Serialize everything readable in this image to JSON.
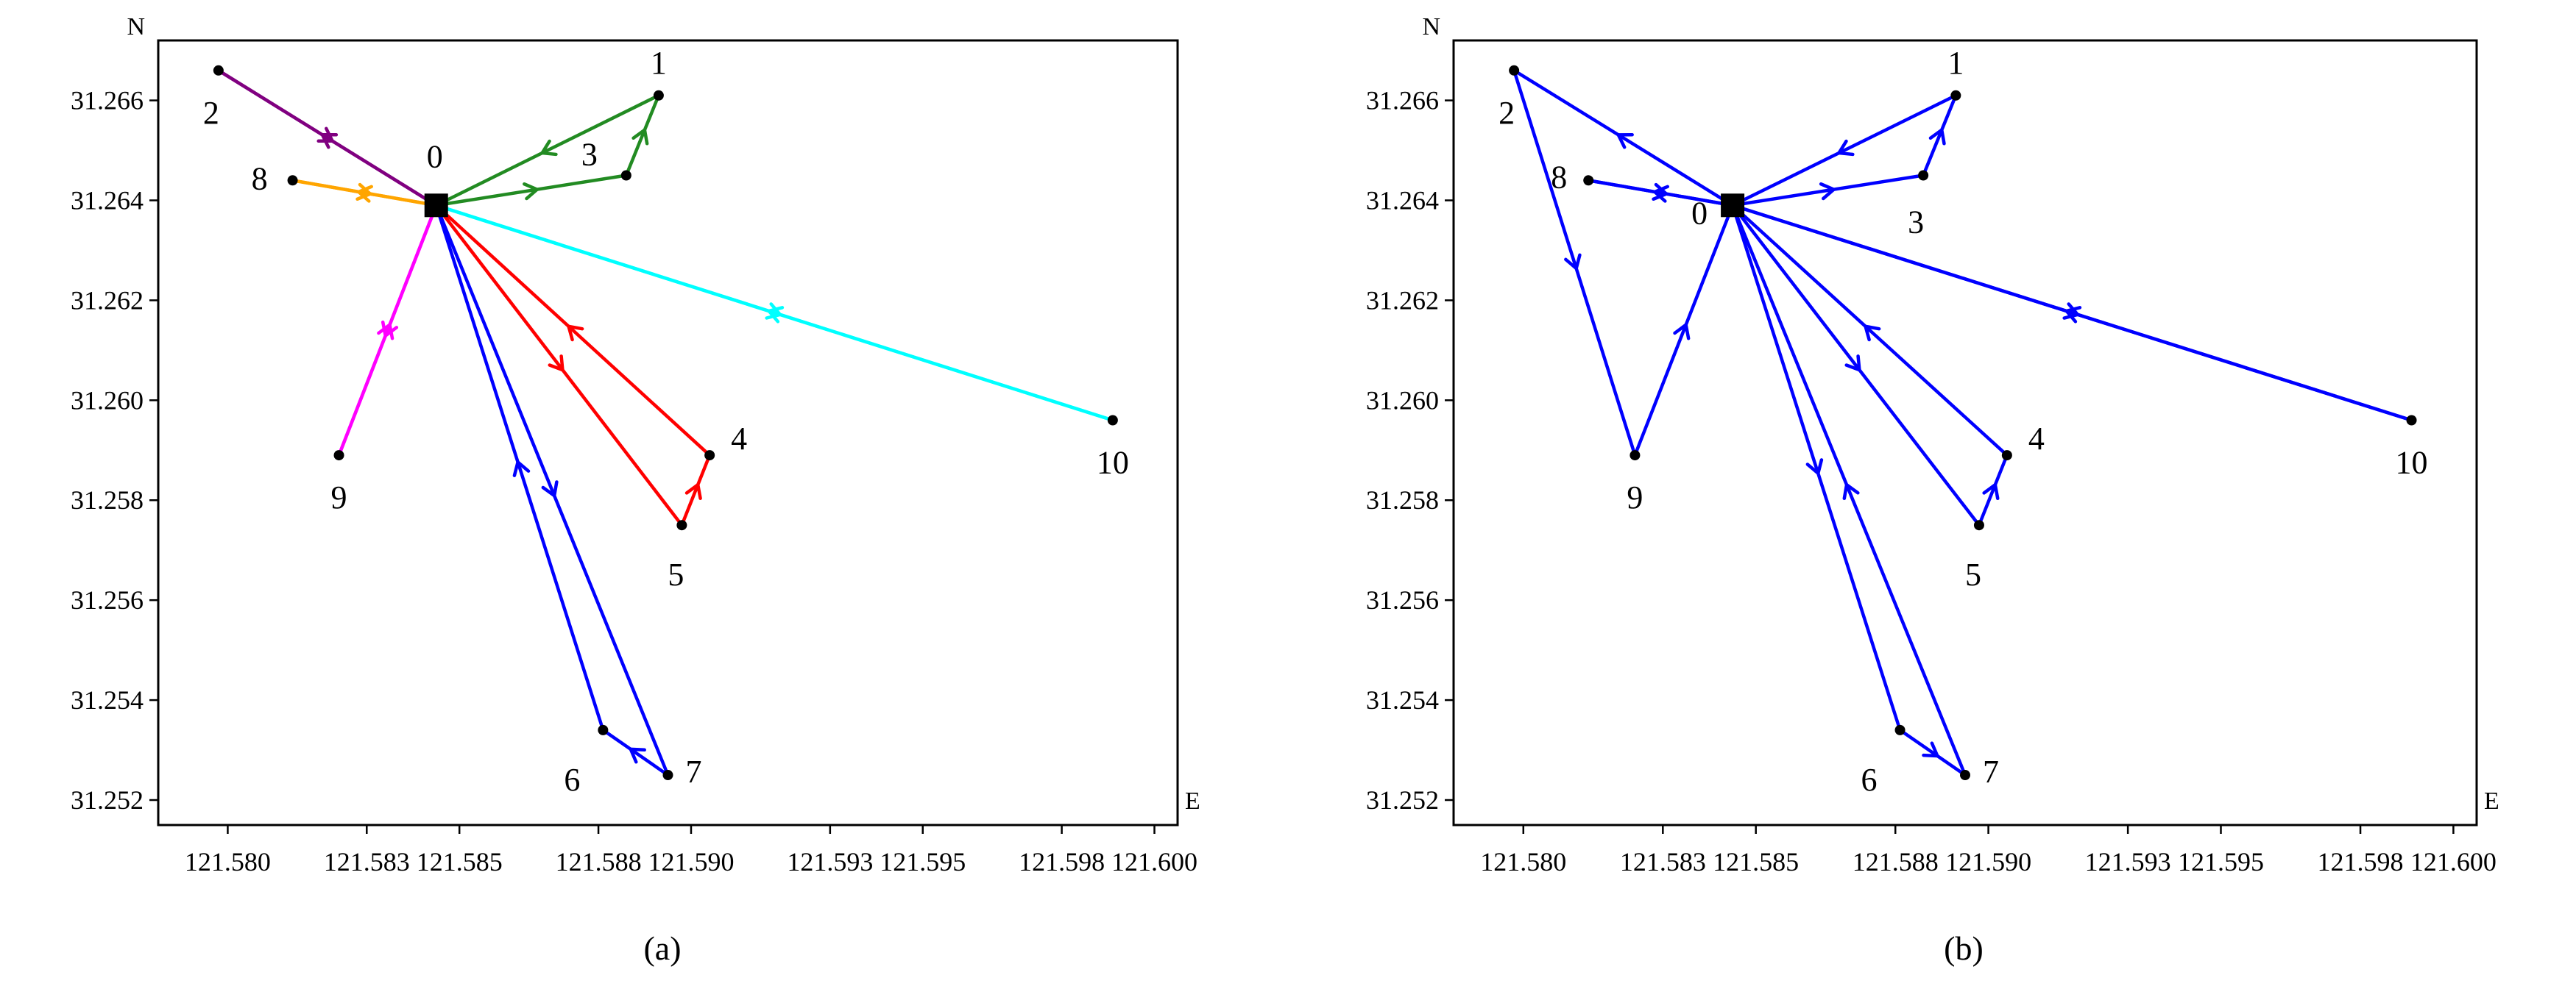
{
  "axis": {
    "x_ticks": [
      "121.580",
      "121.583",
      "121.585",
      "121.588",
      "121.590",
      "121.593",
      "121.595",
      "121.598",
      "121.600"
    ],
    "y_ticks": [
      "31.252",
      "31.254",
      "31.256",
      "31.258",
      "31.260",
      "31.262",
      "31.264",
      "31.266"
    ],
    "x_label": "E",
    "y_label": "N"
  },
  "nodes": [
    {
      "id": "0",
      "lon": 121.5845,
      "lat": 31.2639,
      "depot": true
    },
    {
      "id": "1",
      "lon": 121.5893,
      "lat": 31.2661
    },
    {
      "id": "2",
      "lon": 121.5798,
      "lat": 31.2666
    },
    {
      "id": "3",
      "lon": 121.5886,
      "lat": 31.2645
    },
    {
      "id": "4",
      "lon": 121.5904,
      "lat": 31.2589
    },
    {
      "id": "5",
      "lon": 121.5898,
      "lat": 31.2575
    },
    {
      "id": "6",
      "lon": 121.5881,
      "lat": 31.2534
    },
    {
      "id": "7",
      "lon": 121.5895,
      "lat": 31.2525
    },
    {
      "id": "8",
      "lon": 121.5814,
      "lat": 31.2644
    },
    {
      "id": "9",
      "lon": 121.5824,
      "lat": 31.2589
    },
    {
      "id": "10",
      "lon": 121.5991,
      "lat": 31.2596
    }
  ],
  "panels": [
    {
      "caption": "(a)",
      "routes": [
        {
          "color": "#800080",
          "path": [
            "0",
            "2",
            "0"
          ]
        },
        {
          "color": "#228b22",
          "path": [
            "0",
            "3",
            "1",
            "0"
          ]
        },
        {
          "color": "#ffa500",
          "path": [
            "0",
            "8",
            "0"
          ]
        },
        {
          "color": "#ff00ff",
          "path": [
            "0",
            "9",
            "0"
          ]
        },
        {
          "color": "#00ffff",
          "path": [
            "0",
            "10",
            "0"
          ]
        },
        {
          "color": "#ff0000",
          "path": [
            "0",
            "5",
            "4",
            "0"
          ]
        },
        {
          "color": "#0000ff",
          "path": [
            "0",
            "7",
            "6",
            "0"
          ]
        }
      ]
    },
    {
      "caption": "(b)",
      "routes": [
        {
          "color": "#0000ff",
          "path": [
            "0",
            "3",
            "1",
            "0"
          ]
        },
        {
          "color": "#0000ff",
          "path": [
            "0",
            "8",
            "0"
          ]
        },
        {
          "color": "#0000ff",
          "path": [
            "0",
            "2",
            "9",
            "0"
          ]
        },
        {
          "color": "#0000ff",
          "path": [
            "0",
            "10",
            "0"
          ]
        },
        {
          "color": "#0000ff",
          "path": [
            "0",
            "5",
            "4",
            "0"
          ]
        },
        {
          "color": "#0000ff",
          "path": [
            "0",
            "6",
            "7",
            "0"
          ]
        }
      ]
    }
  ]
}
